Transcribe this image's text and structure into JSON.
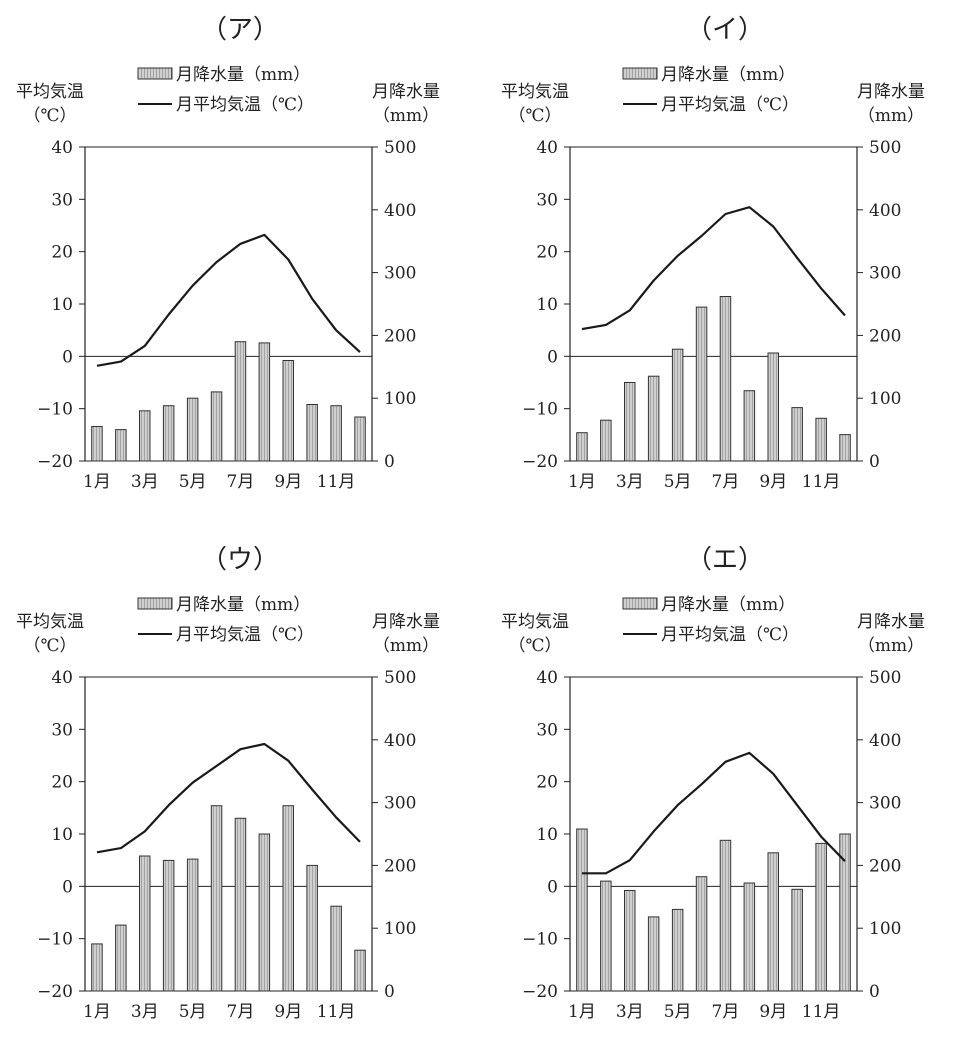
{
  "legend": {
    "precip_label": "月降水量（mm）",
    "temp_label": "月平均気温（℃）"
  },
  "axis_labels": {
    "left_line1": "平均気温",
    "left_line2": "（℃）",
    "right_line1": "月降水量",
    "right_line2": "（mm）"
  },
  "colors": {
    "bar": "#bdbdbd",
    "bar_stroke": "#333333",
    "line": "#1a1a1a",
    "axis": "#222222"
  },
  "chart_data": [
    {
      "type": "bar",
      "title": "（ア）",
      "categories": [
        "1月",
        "2月",
        "3月",
        "4月",
        "5月",
        "6月",
        "7月",
        "8月",
        "9月",
        "10月",
        "11月",
        "12月"
      ],
      "x_tick_labels": [
        "1月",
        "3月",
        "5月",
        "7月",
        "9月",
        "11月"
      ],
      "series": [
        {
          "name": "月降水量（mm）",
          "axis": "right",
          "values": [
            55,
            50,
            80,
            88,
            100,
            110,
            190,
            188,
            160,
            90,
            88,
            70
          ]
        },
        {
          "name": "月平均気温（℃）",
          "axis": "left",
          "type": "line",
          "values": [
            -1.8,
            -1.0,
            2.0,
            8.0,
            13.5,
            18.0,
            21.5,
            23.2,
            18.5,
            11.0,
            5.0,
            0.8
          ]
        }
      ],
      "y_left": {
        "min": -20,
        "max": 40,
        "ticks": [
          -20,
          -10,
          0,
          10,
          20,
          30,
          40
        ]
      },
      "y_right": {
        "min": 0,
        "max": 500,
        "ticks": [
          0,
          100,
          200,
          300,
          400,
          500
        ]
      }
    },
    {
      "type": "bar",
      "title": "（イ）",
      "categories": [
        "1月",
        "2月",
        "3月",
        "4月",
        "5月",
        "6月",
        "7月",
        "8月",
        "9月",
        "10月",
        "11月",
        "12月"
      ],
      "x_tick_labels": [
        "1月",
        "3月",
        "5月",
        "7月",
        "9月",
        "11月"
      ],
      "series": [
        {
          "name": "月降水量（mm）",
          "axis": "right",
          "values": [
            45,
            65,
            125,
            135,
            178,
            245,
            262,
            112,
            172,
            85,
            68,
            42
          ]
        },
        {
          "name": "月平均気温（℃）",
          "axis": "left",
          "type": "line",
          "values": [
            5.2,
            6.0,
            8.8,
            14.5,
            19.2,
            23.0,
            27.2,
            28.5,
            24.8,
            18.8,
            13.0,
            7.8
          ]
        }
      ],
      "y_left": {
        "min": -20,
        "max": 40,
        "ticks": [
          -20,
          -10,
          0,
          10,
          20,
          30,
          40
        ]
      },
      "y_right": {
        "min": 0,
        "max": 500,
        "ticks": [
          0,
          100,
          200,
          300,
          400,
          500
        ]
      }
    },
    {
      "type": "bar",
      "title": "（ウ）",
      "categories": [
        "1月",
        "2月",
        "3月",
        "4月",
        "5月",
        "6月",
        "7月",
        "8月",
        "9月",
        "10月",
        "11月",
        "12月"
      ],
      "x_tick_labels": [
        "1月",
        "3月",
        "5月",
        "7月",
        "9月",
        "11月"
      ],
      "series": [
        {
          "name": "月降水量（mm）",
          "axis": "right",
          "values": [
            75,
            105,
            215,
            208,
            210,
            295,
            275,
            250,
            295,
            200,
            135,
            65
          ]
        },
        {
          "name": "月平均気温（℃）",
          "axis": "left",
          "type": "line",
          "values": [
            6.5,
            7.3,
            10.5,
            15.5,
            19.8,
            23.0,
            26.2,
            27.2,
            24.0,
            18.5,
            13.2,
            8.5
          ]
        }
      ],
      "y_left": {
        "min": -20,
        "max": 40,
        "ticks": [
          -20,
          -10,
          0,
          10,
          20,
          30,
          40
        ]
      },
      "y_right": {
        "min": 0,
        "max": 500,
        "ticks": [
          0,
          100,
          200,
          300,
          400,
          500
        ]
      }
    },
    {
      "type": "bar",
      "title": "（エ）",
      "categories": [
        "1月",
        "2月",
        "3月",
        "4月",
        "5月",
        "6月",
        "7月",
        "8月",
        "9月",
        "10月",
        "11月",
        "12月"
      ],
      "x_tick_labels": [
        "1月",
        "3月",
        "5月",
        "7月",
        "9月",
        "11月"
      ],
      "series": [
        {
          "name": "月降水量（mm）",
          "axis": "right",
          "values": [
            258,
            175,
            160,
            118,
            130,
            182,
            240,
            172,
            220,
            162,
            235,
            250
          ]
        },
        {
          "name": "月平均気温（℃）",
          "axis": "left",
          "type": "line",
          "values": [
            2.5,
            2.5,
            5.0,
            10.5,
            15.5,
            19.5,
            23.8,
            25.5,
            21.5,
            15.5,
            9.5,
            4.8
          ]
        }
      ],
      "y_left": {
        "min": -20,
        "max": 40,
        "ticks": [
          -20,
          -10,
          0,
          10,
          20,
          30,
          40
        ]
      },
      "y_right": {
        "min": 0,
        "max": 500,
        "ticks": [
          0,
          100,
          200,
          300,
          400,
          500
        ]
      }
    }
  ]
}
